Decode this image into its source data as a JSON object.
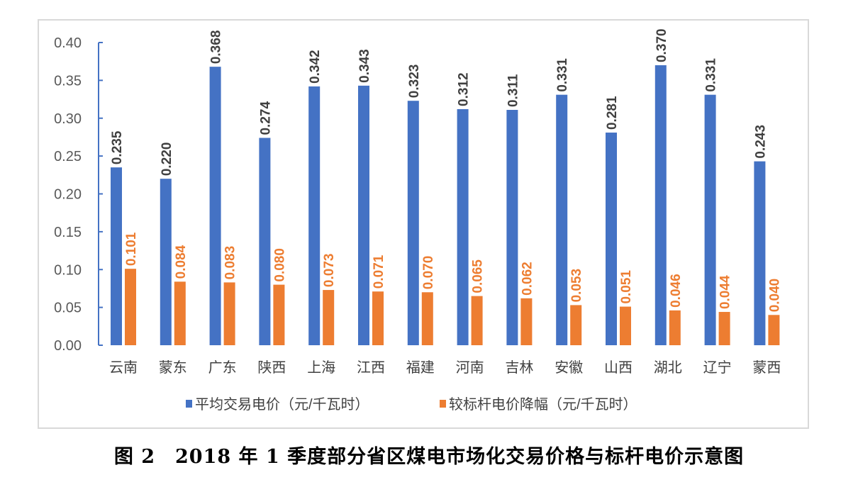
{
  "chart_data": {
    "type": "bar",
    "categories": [
      "云南",
      "蒙东",
      "广东",
      "陕西",
      "上海",
      "江西",
      "福建",
      "河南",
      "吉林",
      "安徽",
      "山西",
      "湖北",
      "辽宁",
      "蒙西"
    ],
    "series": [
      {
        "name": "平均交易电价（元/千瓦时）",
        "color": "#4472C4",
        "values": [
          0.235,
          0.22,
          0.368,
          0.274,
          0.342,
          0.343,
          0.323,
          0.312,
          0.311,
          0.331,
          0.281,
          0.37,
          0.331,
          0.243
        ],
        "labels": [
          "0.235",
          "0.220",
          "0.368",
          "0.274",
          "0.342",
          "0.343",
          "0.323",
          "0.312",
          "0.311",
          "0.331",
          "0.281",
          "0.370",
          "0.331",
          "0.243"
        ]
      },
      {
        "name": "较标杆电价降幅（元/千瓦时）",
        "color": "#ED7D31",
        "values": [
          0.101,
          0.084,
          0.083,
          0.08,
          0.073,
          0.071,
          0.07,
          0.065,
          0.062,
          0.053,
          0.051,
          0.046,
          0.044,
          0.04
        ],
        "labels": [
          "0.101",
          "0.084",
          "0.083",
          "0.080",
          "0.073",
          "0.071",
          "0.070",
          "0.065",
          "0.062",
          "0.053",
          "0.051",
          "0.046",
          "0.044",
          "0.040"
        ]
      }
    ],
    "yticks": [
      "0.00",
      "0.05",
      "0.10",
      "0.15",
      "0.20",
      "0.25",
      "0.30",
      "0.35",
      "0.40"
    ],
    "ylim": [
      0,
      0.4
    ],
    "grid": false,
    "legend": "bottom",
    "title": "图 2　2018 年 1 季度部分省区煤电市场化交易价格与标杆电价示意图"
  }
}
